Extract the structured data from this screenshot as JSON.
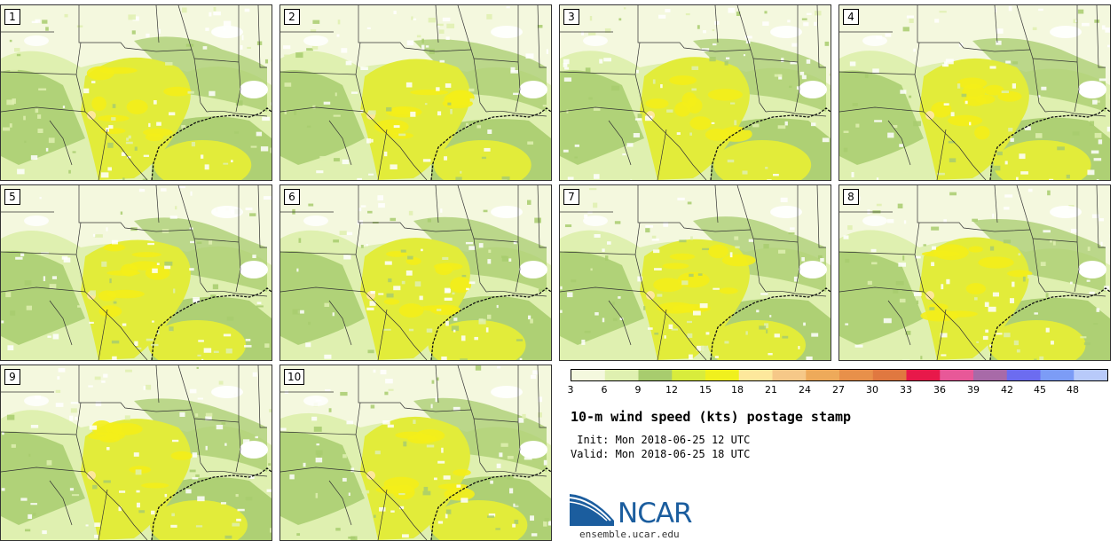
{
  "panels": [
    {
      "label": "1"
    },
    {
      "label": "2"
    },
    {
      "label": "3"
    },
    {
      "label": "4"
    },
    {
      "label": "5"
    },
    {
      "label": "6"
    },
    {
      "label": "7"
    },
    {
      "label": "8"
    },
    {
      "label": "9"
    },
    {
      "label": "10"
    }
  ],
  "colorbar": {
    "tick_labels": [
      "3",
      "6",
      "9",
      "12",
      "15",
      "18",
      "21",
      "24",
      "27",
      "30",
      "33",
      "36",
      "39",
      "42",
      "45",
      "48"
    ],
    "colors": [
      "#f4f8de",
      "#dff0b0",
      "#a8cc6e",
      "#d8ec3c",
      "#f0f01e",
      "#fde89c",
      "#f6c888",
      "#eeaa5a",
      "#e8904a",
      "#e07840",
      "#e8184a",
      "#e85898",
      "#a86aa8",
      "#6c6cf0",
      "#7c9cf6",
      "#b8cafa"
    ]
  },
  "title": "10-m wind speed (kts) postage stamp",
  "init": " Init: Mon 2018-06-25 12 UTC",
  "valid": "Valid: Mon 2018-06-25 18 UTC",
  "logo": {
    "name": "NCAR",
    "url": "ensemble.ucar.edu"
  },
  "map_colors": {
    "white": "#ffffff",
    "pale": "#f4f8de",
    "light": "#dff0b0",
    "green": "#a8cc6e",
    "yellow": "#e2ec3a",
    "bright": "#f4ee1a",
    "peach": "#fde89c"
  }
}
